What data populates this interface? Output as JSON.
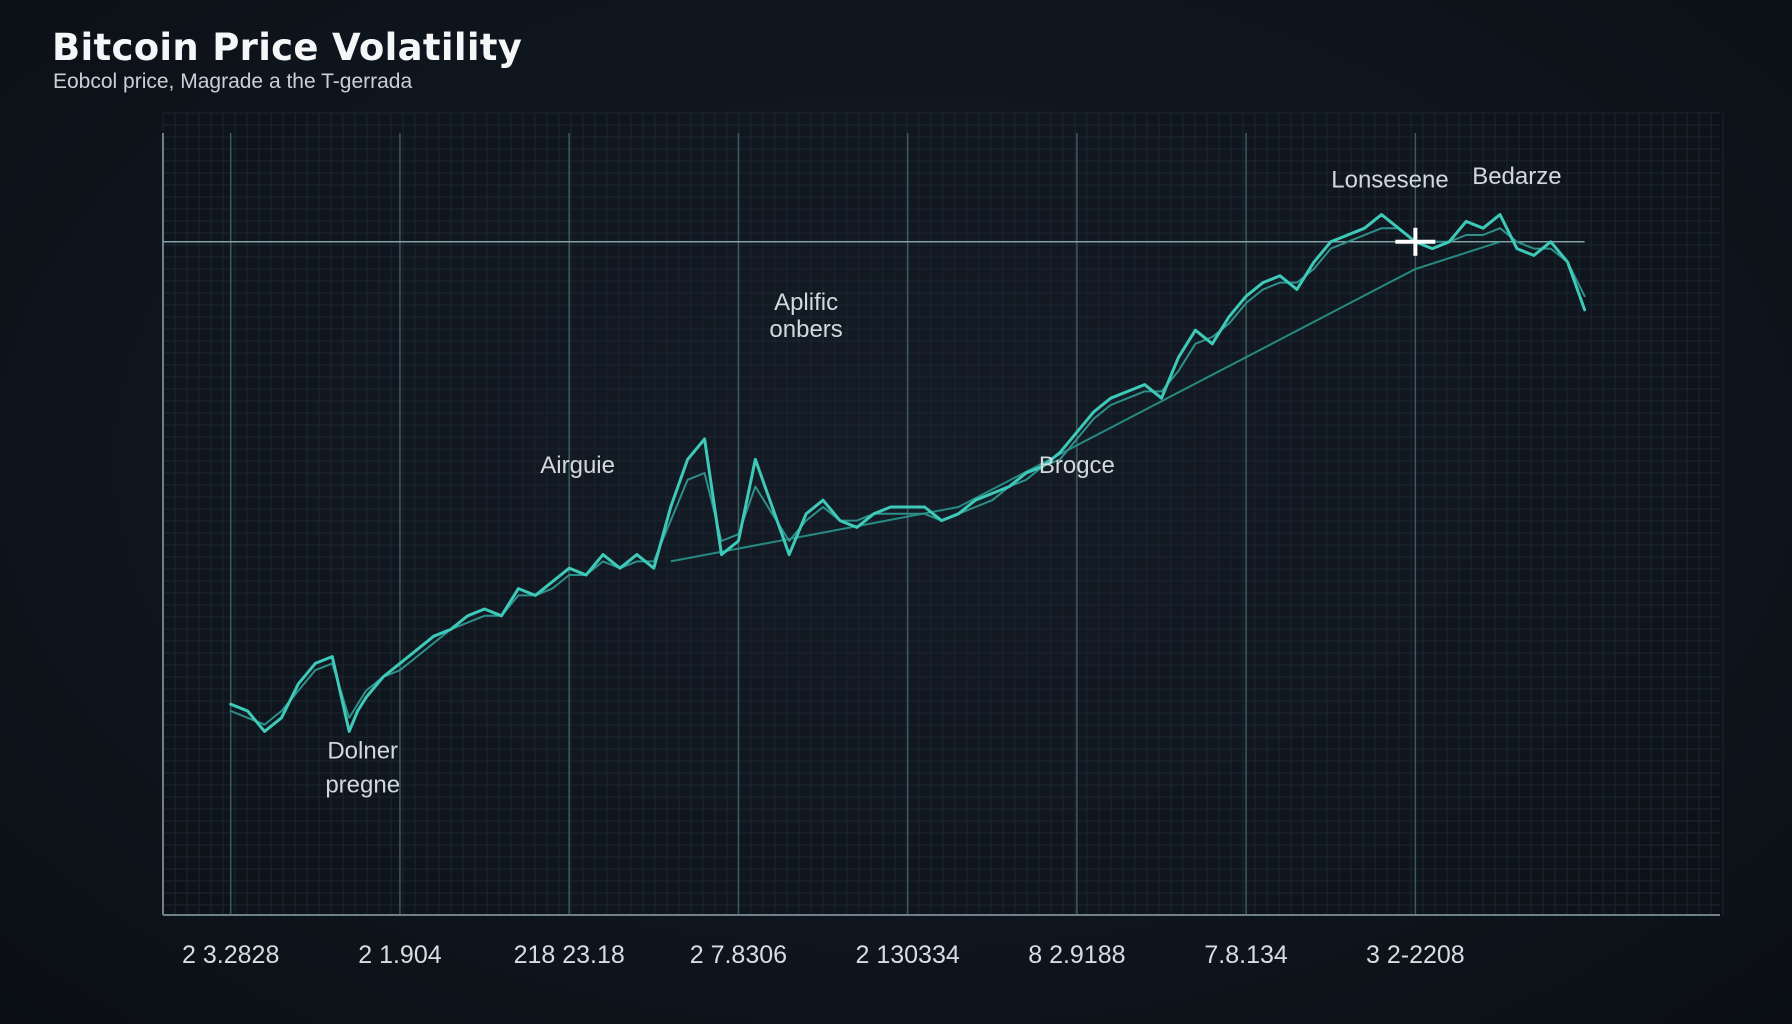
{
  "chart_data": {
    "type": "line",
    "title": "Bitcoin Price Volatility",
    "subtitle": "Eobcol price, Magrade a the T-gerrada",
    "x_tick_labels": [
      "2 3.2828",
      "2 1.904",
      "218 23.18",
      "2 7.8306",
      "2 130334",
      "8 2.9188",
      "7.8.134",
      "3 2-2208"
    ],
    "annotations": [
      {
        "text": "Dolner",
        "x": 0.78,
        "y": 0.08
      },
      {
        "text": "pregne",
        "x": 0.78,
        "y": 0.03
      },
      {
        "text": "Airguie",
        "x": 2.05,
        "y": 0.5
      },
      {
        "text": "Aplific",
        "x": 3.4,
        "y": 0.74
      },
      {
        "text": "onbers",
        "x": 3.4,
        "y": 0.7
      },
      {
        "text": "Brogce",
        "x": 5.0,
        "y": 0.5
      },
      {
        "text": "Lonsesene",
        "x": 6.85,
        "y": 0.92
      },
      {
        "text": "Bedarze",
        "x": 7.6,
        "y": 0.925
      }
    ],
    "reference_line": {
      "y": 0.84
    },
    "marker": {
      "x": 7.0,
      "y": 0.84
    },
    "xlim": [
      -0.4,
      8.8
    ],
    "ylim": [
      -0.15,
      1.0
    ],
    "grid": true,
    "series": [
      {
        "color": "#3ec9b9",
        "x": [
          0,
          0.1,
          0.2,
          0.3,
          0.4,
          0.5,
          0.6,
          0.7,
          0.75,
          0.8,
          0.9,
          1.0,
          1.1,
          1.2,
          1.3,
          1.4,
          1.5,
          1.6,
          1.7,
          1.8,
          1.9,
          2.0,
          2.1,
          2.2,
          2.3,
          2.4,
          2.5,
          2.6,
          2.7,
          2.8,
          2.9,
          3.0,
          3.1,
          3.2,
          3.3,
          3.4,
          3.5,
          3.6,
          3.7,
          3.8,
          3.9,
          4.0,
          4.1,
          4.2,
          4.3,
          4.4,
          4.5,
          4.6,
          4.7,
          4.8,
          4.9,
          5.0,
          5.1,
          5.2,
          5.3,
          5.4,
          5.5,
          5.6,
          5.7,
          5.8,
          5.9,
          6.0,
          6.1,
          6.2,
          6.3,
          6.4,
          6.5,
          6.6,
          6.7,
          6.8,
          6.9,
          7.0,
          7.1,
          7.2,
          7.3,
          7.4,
          7.5,
          7.6,
          7.7,
          7.8,
          7.9,
          8.0
        ],
        "y": [
          0.16,
          0.15,
          0.12,
          0.14,
          0.19,
          0.22,
          0.23,
          0.12,
          0.15,
          0.17,
          0.2,
          0.22,
          0.24,
          0.26,
          0.27,
          0.29,
          0.3,
          0.29,
          0.33,
          0.32,
          0.34,
          0.36,
          0.35,
          0.38,
          0.36,
          0.38,
          0.36,
          0.45,
          0.52,
          0.55,
          0.38,
          0.4,
          0.52,
          0.45,
          0.38,
          0.44,
          0.46,
          0.43,
          0.42,
          0.44,
          0.45,
          0.45,
          0.45,
          0.43,
          0.44,
          0.46,
          0.47,
          0.48,
          0.5,
          0.51,
          0.53,
          0.56,
          0.59,
          0.61,
          0.62,
          0.63,
          0.61,
          0.67,
          0.71,
          0.69,
          0.73,
          0.76,
          0.78,
          0.79,
          0.77,
          0.81,
          0.84,
          0.85,
          0.86,
          0.88,
          0.86,
          0.84,
          0.83,
          0.84,
          0.87,
          0.86,
          0.88,
          0.83,
          0.82,
          0.84,
          0.81,
          0.74
        ]
      },
      {
        "color": "#2f8f8a",
        "x": [
          0,
          0.1,
          0.2,
          0.3,
          0.4,
          0.5,
          0.6,
          0.7,
          0.75,
          0.8,
          0.9,
          1.0,
          1.1,
          1.2,
          1.3,
          1.4,
          1.5,
          1.6,
          1.7,
          1.8,
          1.9,
          2.0,
          2.1,
          2.2,
          2.3,
          2.4,
          2.5,
          2.6,
          2.7,
          2.8,
          2.9,
          3.0,
          3.1,
          3.2,
          3.3,
          3.4,
          3.5,
          3.6,
          3.7,
          3.8,
          3.9,
          4.0,
          4.1,
          4.2,
          4.3,
          4.4,
          4.5,
          4.6,
          4.7,
          4.8,
          4.9,
          5.0,
          5.1,
          5.2,
          5.3,
          5.4,
          5.5,
          5.6,
          5.7,
          5.8,
          5.9,
          6.0,
          6.1,
          6.2,
          6.3,
          6.4,
          6.5,
          6.6,
          6.7,
          6.8,
          6.9,
          7.0,
          7.1,
          7.2,
          7.3,
          7.4,
          7.5,
          7.6,
          7.7,
          7.8,
          7.9,
          8.0
        ],
        "y": [
          0.15,
          0.14,
          0.13,
          0.15,
          0.18,
          0.21,
          0.22,
          0.14,
          0.16,
          0.18,
          0.2,
          0.21,
          0.23,
          0.25,
          0.27,
          0.28,
          0.29,
          0.29,
          0.32,
          0.32,
          0.33,
          0.35,
          0.35,
          0.37,
          0.36,
          0.37,
          0.37,
          0.43,
          0.49,
          0.5,
          0.4,
          0.41,
          0.48,
          0.44,
          0.4,
          0.43,
          0.45,
          0.43,
          0.43,
          0.44,
          0.44,
          0.44,
          0.44,
          0.43,
          0.44,
          0.45,
          0.46,
          0.48,
          0.49,
          0.51,
          0.52,
          0.55,
          0.58,
          0.6,
          0.61,
          0.62,
          0.62,
          0.65,
          0.69,
          0.7,
          0.72,
          0.75,
          0.77,
          0.78,
          0.78,
          0.8,
          0.83,
          0.84,
          0.85,
          0.86,
          0.86,
          0.84,
          0.84,
          0.84,
          0.85,
          0.85,
          0.86,
          0.84,
          0.83,
          0.83,
          0.81,
          0.76
        ]
      }
    ],
    "trend_line": {
      "color": "#2a9d93",
      "x": [
        2.6,
        4.3,
        7.0,
        7.5
      ],
      "y": [
        0.37,
        0.45,
        0.8,
        0.84
      ]
    }
  }
}
